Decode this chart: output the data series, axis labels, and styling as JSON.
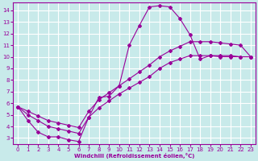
{
  "xlabel": "Windchill (Refroidissement éolien,°C)",
  "background_color": "#c8eaea",
  "line_color": "#990099",
  "grid_color": "#ffffff",
  "xlim": [
    -0.5,
    23.5
  ],
  "ylim": [
    2.5,
    14.7
  ],
  "xticks": [
    0,
    1,
    2,
    3,
    4,
    5,
    6,
    7,
    8,
    9,
    10,
    11,
    12,
    13,
    14,
    15,
    16,
    17,
    18,
    19,
    20,
    21,
    22,
    23
  ],
  "yticks": [
    3,
    4,
    5,
    6,
    7,
    8,
    9,
    10,
    11,
    12,
    13,
    14
  ],
  "line1_x": [
    0,
    1,
    2,
    3,
    4,
    5,
    6,
    7,
    8,
    9,
    10,
    11,
    12,
    13,
    14,
    15,
    16,
    17,
    18,
    19,
    20,
    21,
    22,
    23
  ],
  "line1_y": [
    5.7,
    4.5,
    3.5,
    3.1,
    3.1,
    2.85,
    2.7,
    4.8,
    6.5,
    6.6,
    7.5,
    11.0,
    12.7,
    14.3,
    14.4,
    14.3,
    13.3,
    11.9,
    9.8,
    10.1,
    10.0,
    10.0,
    10.0,
    10.0
  ],
  "line2_x": [
    0,
    1,
    2,
    3,
    4,
    5,
    6,
    7,
    8,
    9,
    10,
    11,
    12,
    13,
    14,
    15,
    16,
    17,
    18,
    19,
    20,
    21,
    22,
    23
  ],
  "line2_y": [
    5.7,
    5.0,
    4.5,
    4.0,
    3.8,
    3.6,
    3.4,
    4.8,
    5.6,
    6.2,
    6.8,
    7.3,
    7.8,
    8.3,
    9.0,
    9.5,
    9.8,
    10.1,
    10.1,
    10.1,
    10.1,
    10.1,
    10.0,
    10.0
  ],
  "line3_x": [
    0,
    1,
    2,
    3,
    4,
    5,
    6,
    7,
    8,
    9,
    10,
    11,
    12,
    13,
    14,
    15,
    16,
    17,
    18,
    19,
    20,
    21,
    22,
    23
  ],
  "line3_y": [
    5.7,
    5.3,
    4.9,
    4.5,
    4.3,
    4.1,
    3.9,
    5.3,
    6.3,
    6.9,
    7.5,
    8.1,
    8.7,
    9.3,
    10.0,
    10.5,
    10.9,
    11.3,
    11.3,
    11.3,
    11.2,
    11.1,
    11.0,
    10.0
  ],
  "figsize": [
    3.2,
    2.0
  ],
  "dpi": 100
}
